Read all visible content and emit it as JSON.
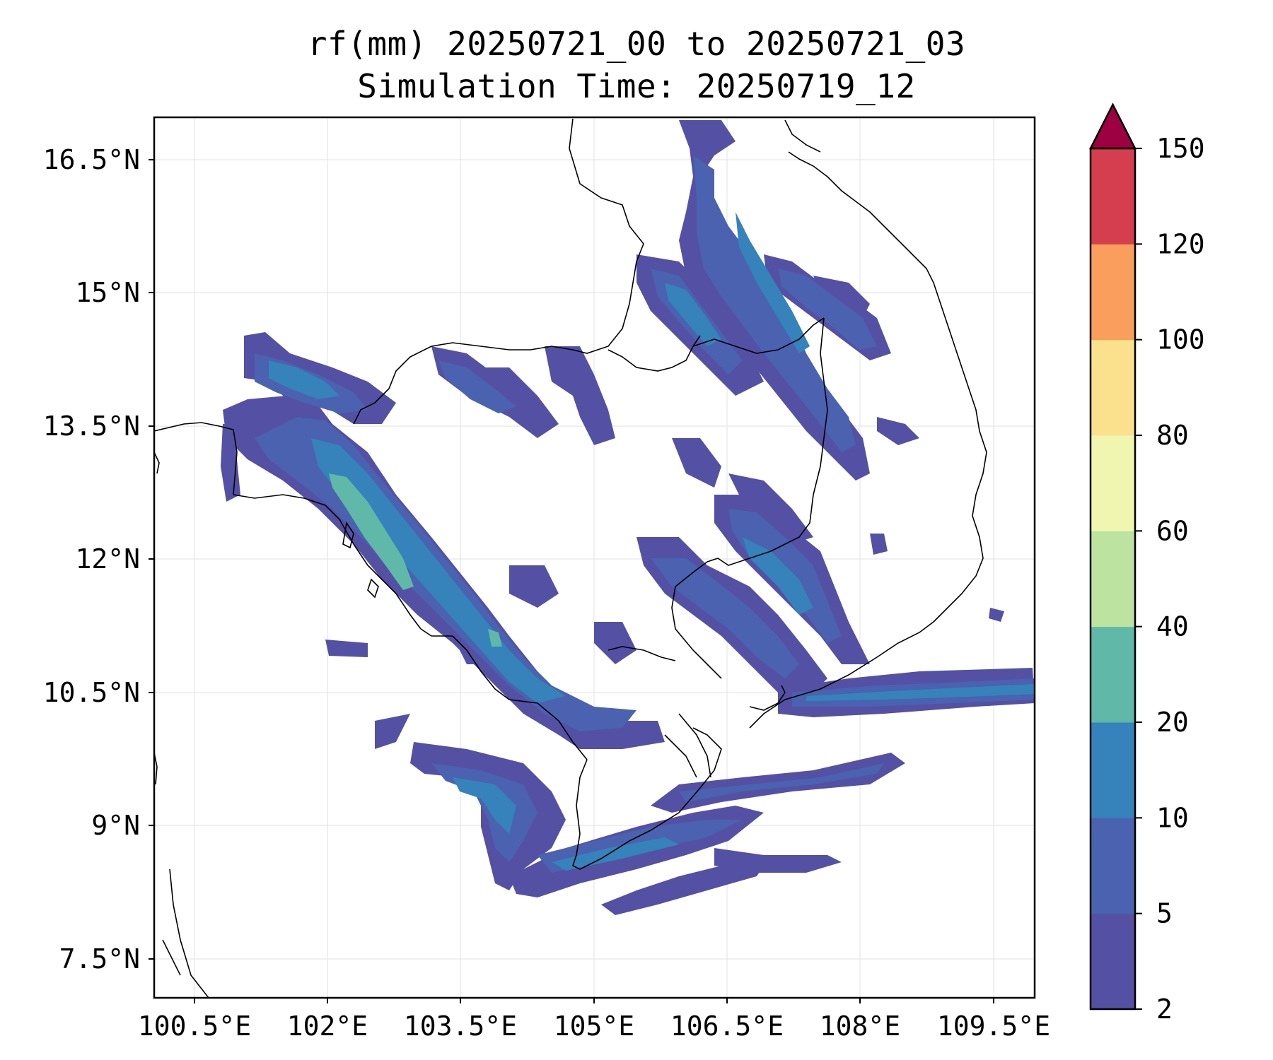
{
  "title": {
    "line1": "rf(mm) 20250721_00 to 20250721_03",
    "line2": "Simulation Time: 20250719_12"
  },
  "map": {
    "lon_range": [
      100.18,
      108.45
    ],
    "lat_range": [
      6.88,
      16.78
    ],
    "lon_ticks": [
      "100.5°E",
      "102°E",
      "103.5°E",
      "105°E",
      "106.5°E",
      "108°E",
      "109.5°E"
    ],
    "lat_ticks": [
      "16.5°N",
      "15°N",
      "13.5°N",
      "12°N",
      "10.5°N",
      "9°N",
      "7.5°N"
    ],
    "gridlines": true,
    "coastline_color": "#000000"
  },
  "colorbar": {
    "ticks": [
      "2",
      "5",
      "10",
      "20",
      "40",
      "60",
      "80",
      "100",
      "120",
      "150"
    ],
    "colors": [
      "#5450a4",
      "#4a62b0",
      "#3682bb",
      "#5fb8a8",
      "#bde3a0",
      "#f0f6b0",
      "#fbe08e",
      "#f99e5c",
      "#d53e4e",
      "#9e0142"
    ],
    "extend": "max"
  },
  "legend_levels": {
    "light": "#5450a4",
    "moderate": "#4a62b0",
    "heavy": "#3682bb",
    "very_heavy": "#5fb8a8"
  }
}
